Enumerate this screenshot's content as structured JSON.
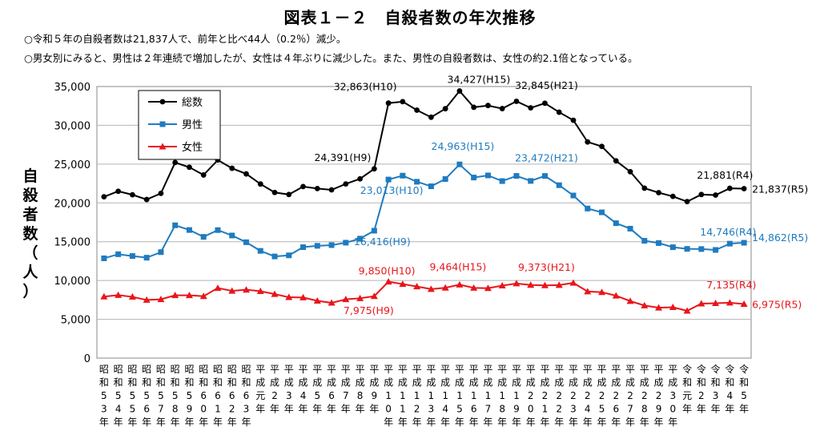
{
  "title": "図表１－２　自殺者数の年次推移",
  "notes": [
    "○令和５年の自殺者数は21,837人で、前年と比べ44人（0.2％）減少。",
    "○男女別にみると、男性は２年連続で増加したが、女性は４年ぶりに減少した。また、男性の自殺者数は、女性の約2.1倍となっている。"
  ],
  "chart_data": {
    "type": "line",
    "title": "図表１－２　自殺者数の年次推移",
    "ylabel": "自殺者数（人）",
    "ylim": [
      0,
      35000
    ],
    "yticks": [
      "0",
      "5,000",
      "10,000",
      "15,000",
      "20,000",
      "25,000",
      "30,000",
      "35,000"
    ],
    "ytick_values": [
      0,
      5000,
      10000,
      15000,
      20000,
      25000,
      30000,
      35000
    ],
    "grid": true,
    "legend_position": "top-left",
    "categories": [
      [
        "昭",
        "和",
        "5",
        "3",
        "年"
      ],
      [
        "昭",
        "和",
        "5",
        "4",
        "年"
      ],
      [
        "昭",
        "和",
        "5",
        "5",
        "年"
      ],
      [
        "昭",
        "和",
        "5",
        "6",
        "年"
      ],
      [
        "昭",
        "和",
        "5",
        "7",
        "年"
      ],
      [
        "昭",
        "和",
        "5",
        "8",
        "年"
      ],
      [
        "昭",
        "和",
        "5",
        "9",
        "年"
      ],
      [
        "昭",
        "和",
        "6",
        "0",
        "年"
      ],
      [
        "昭",
        "和",
        "6",
        "1",
        "年"
      ],
      [
        "昭",
        "和",
        "6",
        "2",
        "年"
      ],
      [
        "昭",
        "和",
        "6",
        "3",
        "年"
      ],
      [
        "平",
        "成",
        "元",
        "年"
      ],
      [
        "平",
        "成",
        "2",
        "年"
      ],
      [
        "平",
        "成",
        "3",
        "年"
      ],
      [
        "平",
        "成",
        "4",
        "年"
      ],
      [
        "平",
        "成",
        "5",
        "年"
      ],
      [
        "平",
        "成",
        "6",
        "年"
      ],
      [
        "平",
        "成",
        "7",
        "年"
      ],
      [
        "平",
        "成",
        "8",
        "年"
      ],
      [
        "平",
        "成",
        "9",
        "年"
      ],
      [
        "平",
        "成",
        "1",
        "0",
        "年"
      ],
      [
        "平",
        "成",
        "1",
        "1",
        "年"
      ],
      [
        "平",
        "成",
        "1",
        "2",
        "年"
      ],
      [
        "平",
        "成",
        "1",
        "3",
        "年"
      ],
      [
        "平",
        "成",
        "1",
        "4",
        "年"
      ],
      [
        "平",
        "成",
        "1",
        "5",
        "年"
      ],
      [
        "平",
        "成",
        "1",
        "6",
        "年"
      ],
      [
        "平",
        "成",
        "1",
        "7",
        "年"
      ],
      [
        "平",
        "成",
        "1",
        "8",
        "年"
      ],
      [
        "平",
        "成",
        "1",
        "9",
        "年"
      ],
      [
        "平",
        "成",
        "2",
        "0",
        "年"
      ],
      [
        "平",
        "成",
        "2",
        "1",
        "年"
      ],
      [
        "平",
        "成",
        "2",
        "2",
        "年"
      ],
      [
        "平",
        "成",
        "2",
        "3",
        "年"
      ],
      [
        "平",
        "成",
        "2",
        "4",
        "年"
      ],
      [
        "平",
        "成",
        "2",
        "5",
        "年"
      ],
      [
        "平",
        "成",
        "2",
        "6",
        "年"
      ],
      [
        "平",
        "成",
        "2",
        "7",
        "年"
      ],
      [
        "平",
        "成",
        "2",
        "8",
        "年"
      ],
      [
        "平",
        "成",
        "2",
        "9",
        "年"
      ],
      [
        "平",
        "成",
        "3",
        "0",
        "年"
      ],
      [
        "令",
        "和",
        "元",
        "年"
      ],
      [
        "令",
        "和",
        "2",
        "年"
      ],
      [
        "令",
        "和",
        "3",
        "年"
      ],
      [
        "令",
        "和",
        "4",
        "年"
      ],
      [
        "令",
        "和",
        "5",
        "年"
      ]
    ],
    "series": [
      {
        "name": "総数",
        "color": "#000000",
        "marker": "circle",
        "values": [
          20788,
          21503,
          21048,
          20434,
          21228,
          25202,
          24596,
          23599,
          25524,
          24460,
          23742,
          22436,
          21346,
          21084,
          22104,
          21851,
          21679,
          22445,
          23104,
          24391,
          32863,
          33048,
          31957,
          31042,
          32143,
          34427,
          32325,
          32552,
          32155,
          33093,
          32249,
          32845,
          31690,
          30651,
          27858,
          27283,
          25427,
          24025,
          21897,
          21321,
          20840,
          20169,
          21081,
          21007,
          21881,
          21837
        ]
      },
      {
        "name": "男性",
        "color": "#1f7bbf",
        "marker": "square",
        "values": [
          12859,
          13386,
          13155,
          12942,
          13654,
          17116,
          16508,
          15624,
          16497,
          15802,
          14934,
          13818,
          13102,
          13242,
          14296,
          14468,
          14560,
          14874,
          15393,
          16416,
          23013,
          23512,
          22727,
          22144,
          23080,
          24963,
          23272,
          23540,
          22813,
          23478,
          22831,
          23472,
          22283,
          20955,
          19273,
          18787,
          17386,
          16681,
          15121,
          14826,
          14290,
          14078,
          14055,
          13939,
          14746,
          14862
        ]
      },
      {
        "name": "女性",
        "color": "#e8161b",
        "marker": "triangle",
        "values": [
          7929,
          8117,
          7893,
          7492,
          7574,
          8086,
          8088,
          7975,
          9027,
          8658,
          8808,
          8618,
          8244,
          7842,
          7808,
          7383,
          7119,
          7571,
          7711,
          7975,
          9850,
          9536,
          9230,
          8898,
          9063,
          9464,
          9053,
          9012,
          9342,
          9615,
          9418,
          9373,
          9407,
          9696,
          8585,
          8496,
          8041,
          7344,
          6776,
          6495,
          6550,
          6091,
          7026,
          7068,
          7135,
          6975
        ]
      }
    ],
    "annotations": [
      {
        "text": "32,863(H10)",
        "series": 0,
        "index": 20,
        "value": 32863
      },
      {
        "text": "24,391(H9)",
        "series": 0,
        "index": 19,
        "value": 24391
      },
      {
        "text": "34,427(H15)",
        "series": 0,
        "index": 25,
        "value": 34427
      },
      {
        "text": "32,845(H21)",
        "series": 0,
        "index": 31,
        "value": 32845
      },
      {
        "text": "21,881(R4)",
        "series": 0,
        "index": 44,
        "value": 21881
      },
      {
        "text": "21,837(R5)",
        "series": 0,
        "index": 45,
        "value": 21837
      },
      {
        "text": "24,963(H15)",
        "series": 1,
        "index": 25,
        "value": 24963
      },
      {
        "text": "23,472(H21)",
        "series": 1,
        "index": 31,
        "value": 23472
      },
      {
        "text": "23,013(H10)",
        "series": 1,
        "index": 20,
        "value": 23013
      },
      {
        "text": "16,416(H9)",
        "series": 1,
        "index": 19,
        "value": 16416
      },
      {
        "text": "14,746(R4)",
        "series": 1,
        "index": 44,
        "value": 14746
      },
      {
        "text": "14,862(R5)",
        "series": 1,
        "index": 45,
        "value": 14862
      },
      {
        "text": "9,850(H10)",
        "series": 2,
        "index": 20,
        "value": 9850
      },
      {
        "text": "9,464(H15)",
        "series": 2,
        "index": 25,
        "value": 9464
      },
      {
        "text": "9,373(H21)",
        "series": 2,
        "index": 31,
        "value": 9373
      },
      {
        "text": "7,975(H9)",
        "series": 2,
        "index": 19,
        "value": 7975
      },
      {
        "text": "7,135(R4)",
        "series": 2,
        "index": 44,
        "value": 7135
      },
      {
        "text": "6,975(R5)",
        "series": 2,
        "index": 45,
        "value": 6975
      }
    ]
  }
}
